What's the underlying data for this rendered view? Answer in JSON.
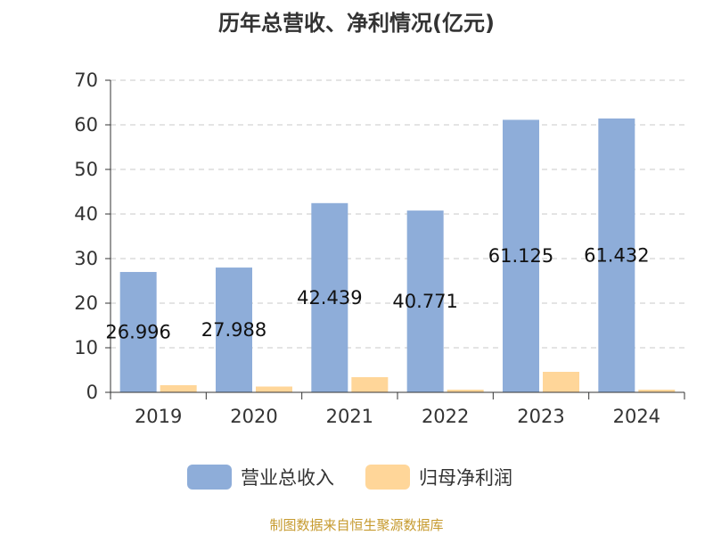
{
  "chart_data": {
    "type": "bar",
    "title": "历年总营收、净利情况(亿元)",
    "categories": [
      "2019",
      "2020",
      "2021",
      "2022",
      "2023",
      "2024"
    ],
    "series": [
      {
        "name": "营业总收入",
        "color": "#8eadd9",
        "values": [
          26.996,
          27.988,
          42.439,
          40.771,
          61.125,
          61.432
        ],
        "labels": [
          "26.996",
          "27.988",
          "42.439",
          "40.771",
          "61.125",
          "61.432"
        ]
      },
      {
        "name": "归母净利润",
        "color": "#ffd699",
        "values": [
          1.6,
          1.3,
          3.4,
          0.6,
          4.6,
          0.6
        ]
      }
    ],
    "ylim": [
      0,
      70
    ],
    "yticks": [
      0,
      10,
      20,
      30,
      40,
      50,
      60,
      70
    ],
    "grid": true,
    "legend": "bottom"
  },
  "footer": {
    "source": "制图数据来自恒生聚源数据库"
  }
}
